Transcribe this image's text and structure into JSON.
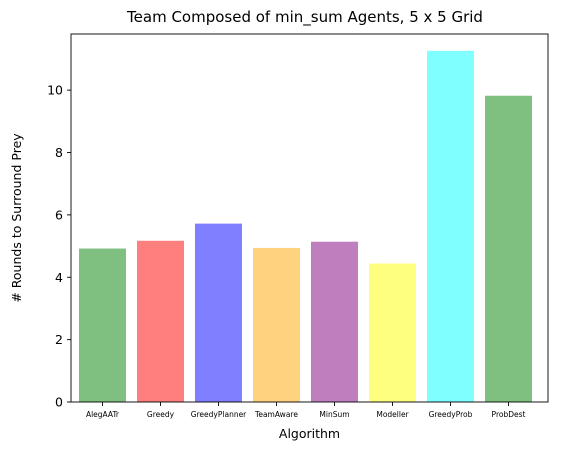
{
  "chart_data": {
    "type": "bar",
    "title": "Team Composed of min_sum Agents, 5 x 5 Grid",
    "xlabel": "Algorithm",
    "ylabel": "# Rounds to Surround Prey",
    "categories": [
      "AlegAATr",
      "Greedy",
      "GreedyPlanner",
      "TeamAware",
      "MinSum",
      "Modeller",
      "GreedyProb",
      "ProbDest"
    ],
    "values": [
      4.92,
      5.17,
      5.72,
      4.94,
      5.14,
      4.44,
      11.26,
      9.82
    ],
    "colors": [
      "#7fbf7f",
      "#ff7f7f",
      "#7f7fff",
      "#ffd27f",
      "#bf7fbf",
      "#ffff7f",
      "#7fffff",
      "#7fbf7f"
    ],
    "ylim": [
      0,
      11.8
    ],
    "yticks": [
      0,
      2,
      4,
      6,
      8,
      10
    ],
    "grid": false,
    "legend": "none"
  }
}
